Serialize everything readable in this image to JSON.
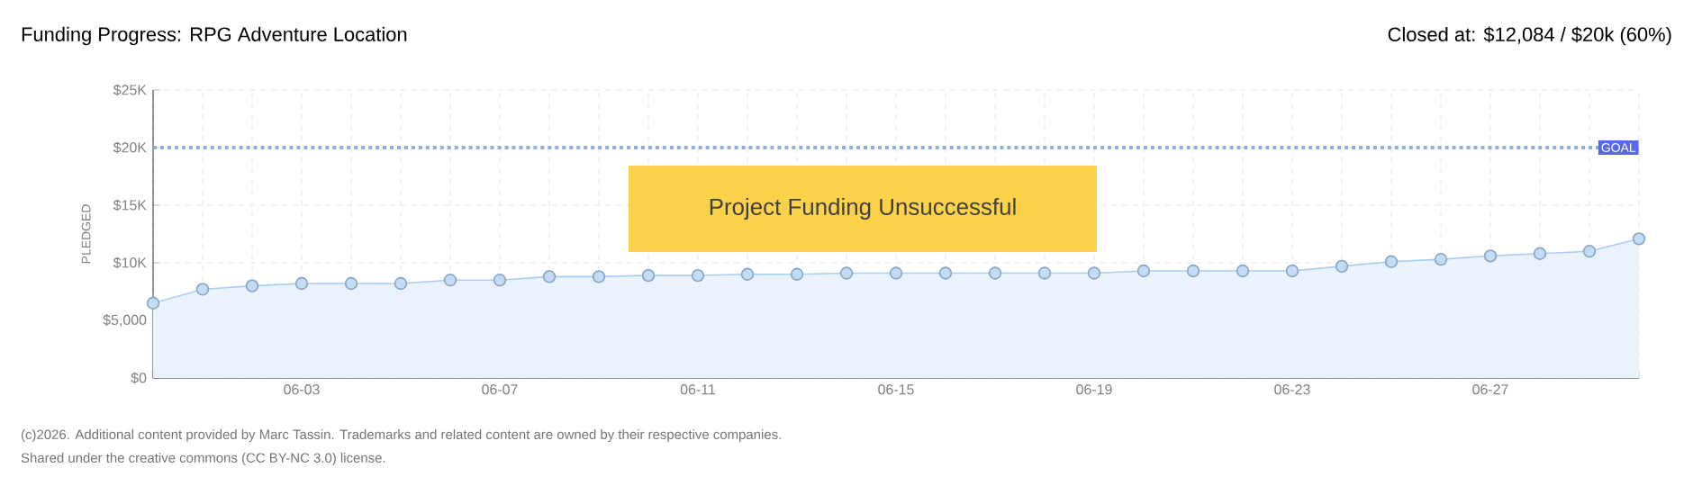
{
  "chart_data": {
    "type": "area",
    "title": "Funding Progress: RPG Adventure Location",
    "subtitle": "Closed at: $12,084 / $20k (60%)",
    "ylabel": "PLEDGED",
    "categories": [
      null,
      null,
      null,
      "06-03",
      null,
      null,
      null,
      "06-07",
      null,
      null,
      null,
      "06-11",
      null,
      null,
      null,
      "06-15",
      null,
      null,
      null,
      "06-19",
      null,
      null,
      null,
      "06-23",
      null,
      null,
      null,
      "06-27",
      null,
      null,
      null
    ],
    "series": [
      {
        "color": "#a9cdf2",
        "values": [
          6500,
          7700,
          8000,
          8200,
          8200,
          8200,
          8500,
          8500,
          8800,
          8800,
          8900,
          8900,
          9000,
          9000,
          9100,
          9100,
          9100,
          9100,
          9100,
          9100,
          9300,
          9300,
          9300,
          9300,
          9700,
          10100,
          10300,
          10600,
          10800,
          11000,
          12084
        ]
      }
    ],
    "ylim": [
      0,
      25000
    ],
    "yticks": [
      {
        "value": 0,
        "label": "$0"
      },
      {
        "value": 5000,
        "label": "$5,000"
      },
      {
        "value": 10000,
        "label": "$10K"
      },
      {
        "value": 15000,
        "label": "$15K"
      },
      {
        "value": 20000,
        "label": "$20K"
      },
      {
        "value": 25000,
        "label": "$25K"
      }
    ],
    "ref_lines": [
      {
        "axis": "y",
        "value": 20000,
        "label": "GOAL",
        "color": "#8fb0d8",
        "line_style": "dotted"
      }
    ],
    "annotations": [
      "Project Funding Unsuccessful",
      "(c)2026. Additional content provided by Marc Tassin. Trademarks and related content are owned by their respective companies.",
      "Shared under the creative commons (CC BY-NC 3.0) license."
    ],
    "grid": true,
    "marker": "circle",
    "line_style": "solid"
  }
}
